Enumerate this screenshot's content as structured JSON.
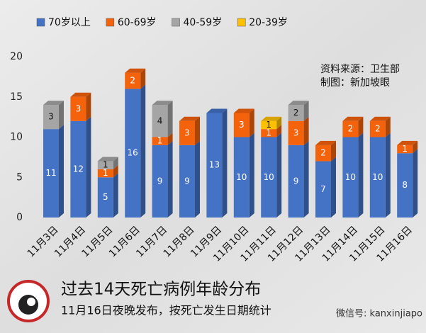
{
  "chart_data": {
    "type": "stacked-bar-3d",
    "title": "过去14天死亡病例年龄分布",
    "subtitle": "11月16日夜晚发布，按死亡发生日期统计",
    "annotations": [
      "资料来源：卫生部",
      "制图：新加坡眼"
    ],
    "watermark": "微信号: kanxinjiapo",
    "categories": [
      "11月3日",
      "11月4日",
      "11月5日",
      "11月6日",
      "11月7日",
      "11月8日",
      "11月9日",
      "11月10日",
      "11月11日",
      "11月12日",
      "11月13日",
      "11月14日",
      "11月15日",
      "11月16日"
    ],
    "series": [
      {
        "name": "70岁以上",
        "color": "#4472c4",
        "values": [
          11,
          12,
          5,
          16,
          9,
          9,
          13,
          10,
          10,
          9,
          7,
          10,
          10,
          8
        ]
      },
      {
        "name": "60-69岁",
        "color": "#f4620c",
        "values": [
          0,
          3,
          1,
          2,
          1,
          3,
          0,
          3,
          1,
          3,
          2,
          2,
          2,
          1
        ]
      },
      {
        "name": "40-59岁",
        "color": "#a5a5a5",
        "values": [
          3,
          0,
          1,
          0,
          4,
          0,
          0,
          0,
          0,
          2,
          0,
          0,
          0,
          0
        ]
      },
      {
        "name": "20-39岁",
        "color": "#ffc000",
        "values": [
          0,
          0,
          0,
          0,
          0,
          0,
          0,
          0,
          1,
          0,
          0,
          0,
          0,
          0
        ]
      }
    ],
    "ylim": [
      0,
      20
    ],
    "yticks": [
      0,
      5,
      10,
      15,
      20
    ],
    "legend": "top"
  }
}
